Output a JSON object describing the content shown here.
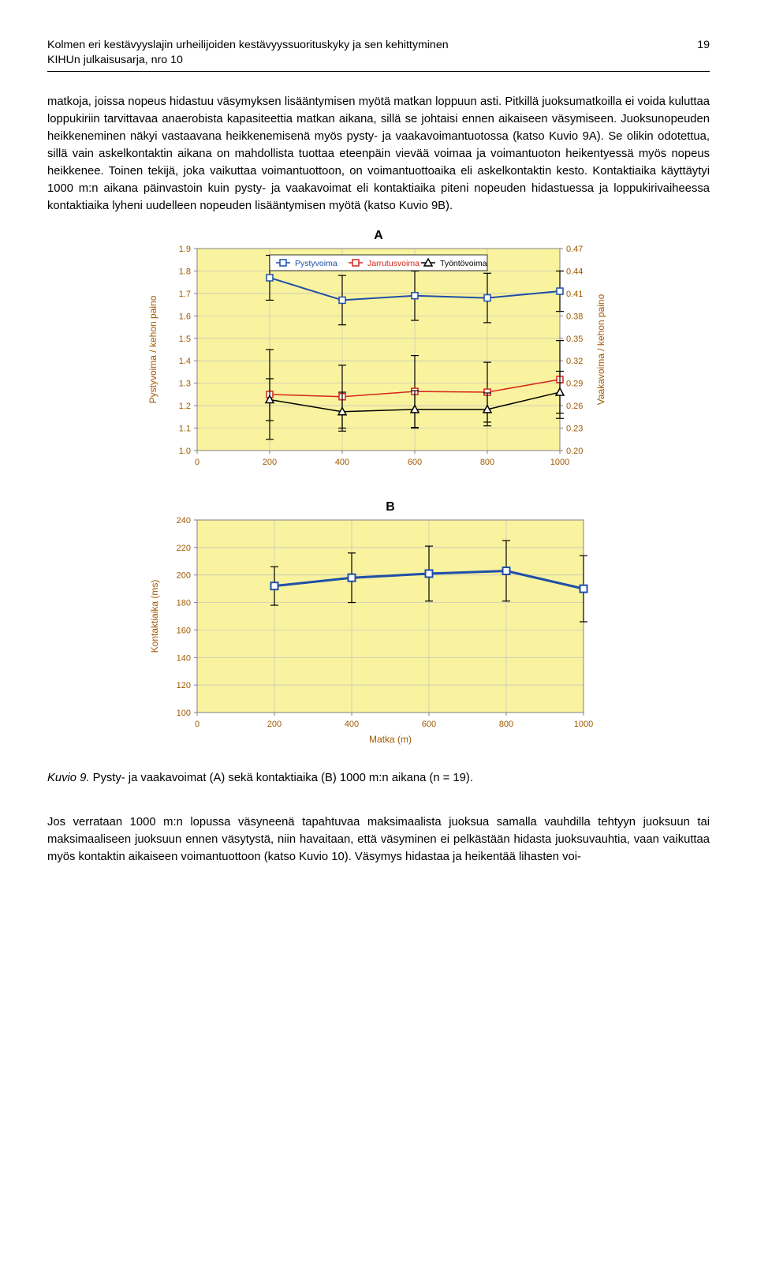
{
  "header": {
    "title_l1": "Kolmen eri kestävyyslajin urheilijoiden kestävyyssuorituskyky ja sen kehittyminen",
    "title_l2": "KIHUn julkaisusarja, nro 10",
    "page_no": "19"
  },
  "paragraph1": "matkoja, joissa nopeus hidastuu väsymyksen lisääntymisen myötä matkan loppuun asti. Pitkillä juoksumatkoilla ei voida kuluttaa loppukiriin tarvittavaa anaerobista kapasiteettia matkan aikana, sillä se johtaisi ennen aikaiseen väsymiseen. Juoksunopeuden heikkeneminen näkyi vastaavana heikkenemisenä myös pysty- ja vaakavoimantuotossa (katso Kuvio 9A). Se olikin odotettua, sillä vain askelkontaktin aikana on mahdollista tuottaa eteenpäin vievää voimaa ja voimantuoton heikentyessä myös nopeus heikkenee. Toinen tekijä, joka vaikuttaa voimantuottoon, on voimantuottoaika eli askelkontaktin kesto. Kontaktiaika käyttäytyi 1000 m:n aikana päinvastoin kuin pysty- ja vaakavoimat eli kontaktiaika piteni nopeuden hidastuessa ja loppukirivaiheessa kontaktiaika lyheni uudelleen nopeuden lisääntymisen myötä (katso Kuvio 9B).",
  "chartA": {
    "type": "line-errorbar-dual-axis",
    "title_letter": "A",
    "legend": [
      "Pystyvoima",
      "Jarrutusvoima",
      "Työntövoima"
    ],
    "legend_markers": [
      "square",
      "square",
      "triangle"
    ],
    "legend_colors": [
      "#1f4fa8",
      "#d4261a",
      "#000000"
    ],
    "xlabel": "",
    "ylabel_left": "Pystyvoima / kehon paino",
    "ylabel_right": "Vaakavoima / kehon paino",
    "x_ticks": [
      0,
      200,
      400,
      600,
      800,
      1000
    ],
    "y_left_ticks": [
      1.0,
      1.1,
      1.2,
      1.3,
      1.4,
      1.5,
      1.6,
      1.7,
      1.8,
      1.9
    ],
    "y_right_ticks": [
      0.2,
      0.23,
      0.26,
      0.29,
      0.32,
      0.35,
      0.38,
      0.41,
      0.44,
      0.47
    ],
    "xlim": [
      0,
      1000
    ],
    "ylim_left": [
      1.0,
      1.9
    ],
    "ylim_right": [
      0.2,
      0.47
    ],
    "background_color": "#f9f39f",
    "grid_color": "#c0c0c0",
    "axis_color": "#808080",
    "label_color": "#a05a00",
    "tick_fontsize": 11,
    "label_fontsize": 12,
    "series": [
      {
        "name": "Pystyvoima",
        "axis": "left",
        "color": "#1f4fa8",
        "marker": "square",
        "line_width": 2,
        "x": [
          200,
          400,
          600,
          800,
          1000
        ],
        "y": [
          1.77,
          1.67,
          1.69,
          1.68,
          1.71
        ],
        "err": [
          0.1,
          0.11,
          0.11,
          0.11,
          0.09
        ]
      },
      {
        "name": "Jarrutusvoima",
        "axis": "right",
        "color": "#d4261a",
        "marker": "square",
        "line_width": 1.5,
        "x": [
          200,
          400,
          600,
          800,
          1000
        ],
        "y": [
          0.275,
          0.272,
          0.279,
          0.278,
          0.295
        ],
        "err": [
          0.06,
          0.042,
          0.048,
          0.04,
          0.052
        ]
      },
      {
        "name": "Työntövoima",
        "axis": "right",
        "color": "#000000",
        "marker": "triangle",
        "line_width": 1.5,
        "x": [
          200,
          400,
          600,
          800,
          1000
        ],
        "y": [
          0.268,
          0.252,
          0.255,
          0.255,
          0.278
        ],
        "err": [
          0.028,
          0.026,
          0.025,
          0.022,
          0.028
        ]
      }
    ]
  },
  "chartB": {
    "type": "line-errorbar",
    "title_letter": "B",
    "xlabel": "Matka (m)",
    "ylabel": "Kontaktiaika (ms)",
    "x_ticks": [
      0,
      200,
      400,
      600,
      800,
      1000
    ],
    "y_ticks": [
      100,
      120,
      140,
      160,
      180,
      200,
      220,
      240
    ],
    "xlim": [
      0,
      1000
    ],
    "ylim": [
      100,
      240
    ],
    "background_color": "#f9f39f",
    "grid_color": "#c0c0c0",
    "axis_color": "#808080",
    "label_color": "#a05a00",
    "tick_fontsize": 11,
    "label_fontsize": 12,
    "series": [
      {
        "name": "Kontaktiaika",
        "color": "#1f4fa8",
        "marker": "square",
        "line_width": 3,
        "x": [
          200,
          400,
          600,
          800,
          1000
        ],
        "y": [
          192,
          198,
          201,
          203,
          190
        ],
        "err": [
          14,
          18,
          20,
          22,
          24
        ]
      }
    ]
  },
  "caption": {
    "prefix": "Kuvio 9.",
    "text": " Pysty- ja vaakavoimat (A) sekä kontaktiaika (B) 1000 m:n aikana (n = 19)."
  },
  "paragraph2": "Jos verrataan 1000 m:n lopussa väsyneenä tapahtuvaa maksimaalista juoksua samalla vauhdilla tehtyyn juoksuun tai maksimaaliseen juoksuun ennen väsytystä, niin havaitaan, että väsyminen ei pelkästään hidasta juoksuvauhtia, vaan vaikuttaa myös kontaktin aikaiseen voimantuottoon (katso Kuvio 10). Väsymys hidastaa ja heikentää lihasten voi-"
}
